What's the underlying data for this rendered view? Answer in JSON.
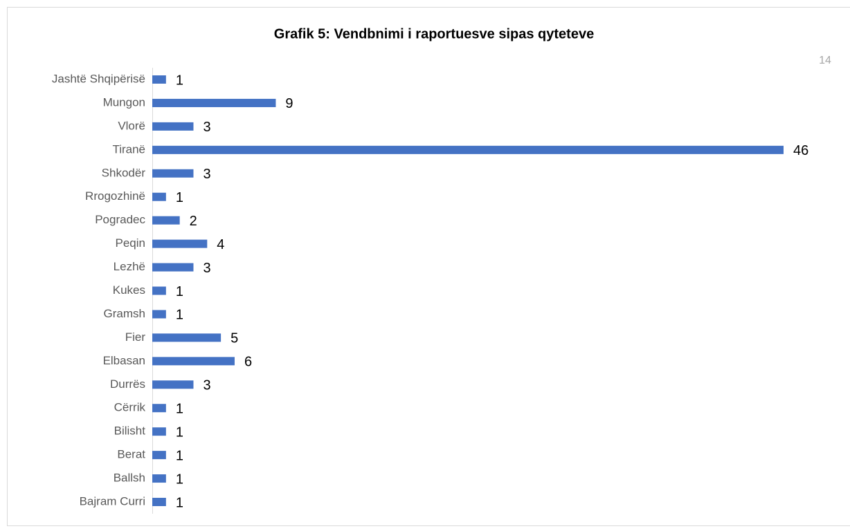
{
  "page_number": "14",
  "chart_data": {
    "type": "bar",
    "orientation": "horizontal",
    "title": "Grafik 5: Vendbnimi i raportuesve sipas qyteteve",
    "categories": [
      "Jashtë Shqipërisë",
      "Mungon",
      "Vlorë",
      "Tiranë",
      "Shkodër",
      "Rrogozhinë",
      "Pogradec",
      "Peqin",
      "Lezhë",
      "Kukes",
      "Gramsh",
      "Fier",
      "Elbasan",
      "Durrës",
      "Cërrik",
      "Bilisht",
      "Berat",
      "Ballsh",
      "Bajram Curri"
    ],
    "values": [
      1,
      9,
      3,
      46,
      3,
      1,
      2,
      4,
      3,
      1,
      1,
      5,
      6,
      3,
      1,
      1,
      1,
      1,
      1
    ],
    "color": "#4472c4"
  }
}
